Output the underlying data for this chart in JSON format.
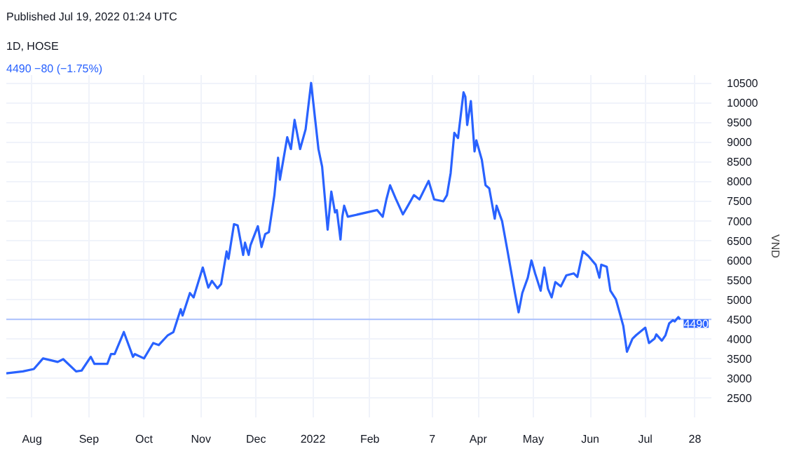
{
  "chart_data": {
    "type": "line",
    "title": "1D, HOSE",
    "subtitle": "4490 −80 (−1.75%)",
    "ylabel": "VND",
    "annotations": [
      "Published Jul 19, 2022 01:24 UTC"
    ],
    "x": [
      "2021-07-18",
      "2021-07-27",
      "2021-08-02",
      "2021-08-07",
      "2021-08-15",
      "2021-08-18",
      "2021-08-25",
      "2021-08-28",
      "2021-09-02",
      "2021-09-04",
      "2021-09-11",
      "2021-09-13",
      "2021-09-15",
      "2021-09-20",
      "2021-09-25",
      "2021-09-26",
      "2021-10-01",
      "2021-10-06",
      "2021-10-09",
      "2021-10-14",
      "2021-10-17",
      "2021-10-21",
      "2021-10-22",
      "2021-10-26",
      "2021-10-28",
      "2021-11-02",
      "2021-11-05",
      "2021-11-07",
      "2021-11-10",
      "2021-11-12",
      "2021-11-15",
      "2021-11-16",
      "2021-11-19",
      "2021-11-21",
      "2021-11-24",
      "2021-11-25",
      "2021-11-27",
      "2021-11-28",
      "2021-12-02",
      "2021-12-04",
      "2021-12-06",
      "2021-12-08",
      "2021-12-11",
      "2021-12-13",
      "2021-12-14",
      "2021-12-18",
      "2021-12-20",
      "2021-12-22",
      "2021-12-25",
      "2021-12-28",
      "2021-12-31",
      "2022-01-04",
      "2022-01-06",
      "2022-01-09",
      "2022-01-11",
      "2022-01-13",
      "2022-01-14",
      "2022-01-16",
      "2022-01-17",
      "2022-01-18",
      "2022-01-20",
      "2022-02-05",
      "2022-02-08",
      "2022-02-10",
      "2022-02-12",
      "2022-02-15",
      "2022-02-19",
      "2022-02-21",
      "2022-02-25",
      "2022-02-28",
      "2022-03-05",
      "2022-03-08",
      "2022-03-13",
      "2022-03-15",
      "2022-03-17",
      "2022-03-19",
      "2022-03-21",
      "2022-03-24",
      "2022-03-25",
      "2022-03-26",
      "2022-03-28",
      "2022-03-30",
      "2022-03-31",
      "2022-04-03",
      "2022-04-05",
      "2022-04-07",
      "2022-04-10",
      "2022-04-11",
      "2022-04-14",
      "2022-04-17",
      "2022-04-21",
      "2022-04-23",
      "2022-04-25",
      "2022-04-28",
      "2022-04-30",
      "2022-05-02",
      "2022-05-05",
      "2022-05-07",
      "2022-05-09",
      "2022-05-11",
      "2022-05-13",
      "2022-05-16",
      "2022-05-19",
      "2022-05-23",
      "2022-05-25",
      "2022-05-28",
      "2022-05-31",
      "2022-06-04",
      "2022-06-06",
      "2022-06-07",
      "2022-06-10",
      "2022-06-12",
      "2022-06-15",
      "2022-06-19",
      "2022-06-21",
      "2022-06-24",
      "2022-06-26",
      "2022-07-01",
      "2022-07-03",
      "2022-07-06",
      "2022-07-07",
      "2022-07-10",
      "2022-07-12",
      "2022-07-14",
      "2022-07-16",
      "2022-07-17",
      "2022-07-19",
      "2022-07-20"
    ],
    "series": [
      {
        "color": "#2962ff",
        "values": [
          3120,
          3170,
          3230,
          3500,
          3410,
          3480,
          3170,
          3190,
          3540,
          3360,
          3360,
          3610,
          3610,
          4170,
          3540,
          3610,
          3500,
          3890,
          3840,
          4090,
          4170,
          4750,
          4590,
          5160,
          5050,
          5810,
          5300,
          5470,
          5280,
          5390,
          6220,
          6030,
          6910,
          6880,
          6130,
          6440,
          6130,
          6380,
          6860,
          6330,
          6660,
          6710,
          7650,
          8600,
          8040,
          9120,
          8820,
          9560,
          8820,
          9320,
          10500,
          8820,
          8370,
          6770,
          7740,
          7210,
          7270,
          6520,
          7100,
          7380,
          7100,
          7270,
          7100,
          7540,
          7900,
          7570,
          7160,
          7320,
          7650,
          7540,
          8010,
          7540,
          7490,
          7650,
          8210,
          9230,
          9100,
          10260,
          10150,
          9430,
          10040,
          8760,
          9040,
          8540,
          7900,
          7820,
          7050,
          7380,
          6990,
          6220,
          5160,
          4670,
          5160,
          5550,
          5990,
          5660,
          5220,
          5810,
          5270,
          5050,
          5440,
          5330,
          5610,
          5660,
          5570,
          6220,
          6100,
          5880,
          5550,
          5880,
          5830,
          5220,
          5000,
          4330,
          3670,
          4000,
          4090,
          4280,
          3890,
          4000,
          4110,
          3950,
          4090,
          4390,
          4470,
          4440,
          4550,
          4490
        ]
      }
    ],
    "xlim": [
      "2021-07-18",
      "2022-08-06"
    ],
    "xticks": [
      {
        "value": "2021-08-01",
        "label": "Aug"
      },
      {
        "value": "2021-09-01",
        "label": "Sep"
      },
      {
        "value": "2021-10-01",
        "label": "Oct"
      },
      {
        "value": "2021-11-01",
        "label": "Nov"
      },
      {
        "value": "2021-12-01",
        "label": "Dec"
      },
      {
        "value": "2022-01-01",
        "label": "2022"
      },
      {
        "value": "2022-02-01",
        "label": "Feb"
      },
      {
        "value": "2022-03-07",
        "label": "7"
      },
      {
        "value": "2022-04-01",
        "label": "Apr"
      },
      {
        "value": "2022-05-01",
        "label": "May"
      },
      {
        "value": "2022-06-01",
        "label": "Jun"
      },
      {
        "value": "2022-07-01",
        "label": "Jul"
      },
      {
        "value": "2022-07-28",
        "label": "28"
      }
    ],
    "ylim": [
      2000,
      10700
    ],
    "yticks": [
      2500,
      3000,
      3500,
      4000,
      4500,
      5000,
      5500,
      6000,
      6500,
      7000,
      7500,
      8000,
      8500,
      9000,
      9500,
      10000,
      10500
    ],
    "ref_lines": [
      {
        "axis": "y",
        "value": 4490,
        "label": "4490",
        "color": "#2962ff"
      }
    ],
    "grid": true,
    "line_style": "solid"
  }
}
